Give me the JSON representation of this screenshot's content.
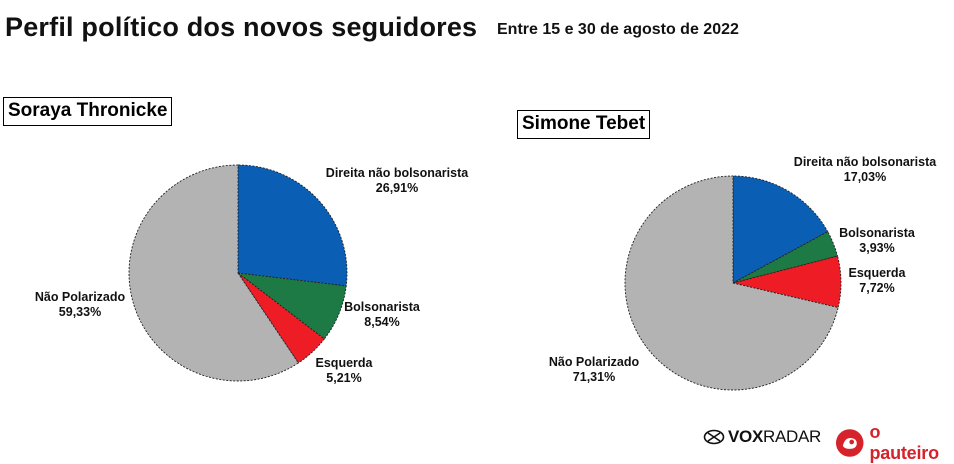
{
  "header": {
    "title": "Perfil político dos novos seguidores",
    "subtitle": "Entre 15 e 30 de agosto de 2022"
  },
  "colors": {
    "direita_nao_bolsonarista": "#0a5fb4",
    "bolsonarista": "#1e7a45",
    "esquerda": "#ee1c25",
    "nao_polarizado": "#b3b3b3"
  },
  "chart_data": [
    {
      "type": "pie",
      "title": "Soraya Thronicke",
      "slices": [
        {
          "label": "Direita não bolsonarista",
          "value": 26.91,
          "display": "26,91%"
        },
        {
          "label": "Bolsonarista",
          "value": 8.54,
          "display": "8,54%"
        },
        {
          "label": "Esquerda",
          "value": 5.21,
          "display": "5,21%"
        },
        {
          "label": "Não Polarizado",
          "value": 59.33,
          "display": "59,33%"
        }
      ]
    },
    {
      "type": "pie",
      "title": "Simone Tebet",
      "slices": [
        {
          "label": "Direita não bolsonarista",
          "value": 17.03,
          "display": "17,03%"
        },
        {
          "label": "Bolsonarista",
          "value": 3.93,
          "display": "3,93%"
        },
        {
          "label": "Esquerda",
          "value": 7.72,
          "display": "7,72%"
        },
        {
          "label": "Não Polarizado",
          "value": 71.31,
          "display": "71,31%"
        }
      ]
    }
  ],
  "footer": {
    "vox_bold": "VOX",
    "vox_thin": "RADAR",
    "pauteiro": "o pauteiro"
  }
}
